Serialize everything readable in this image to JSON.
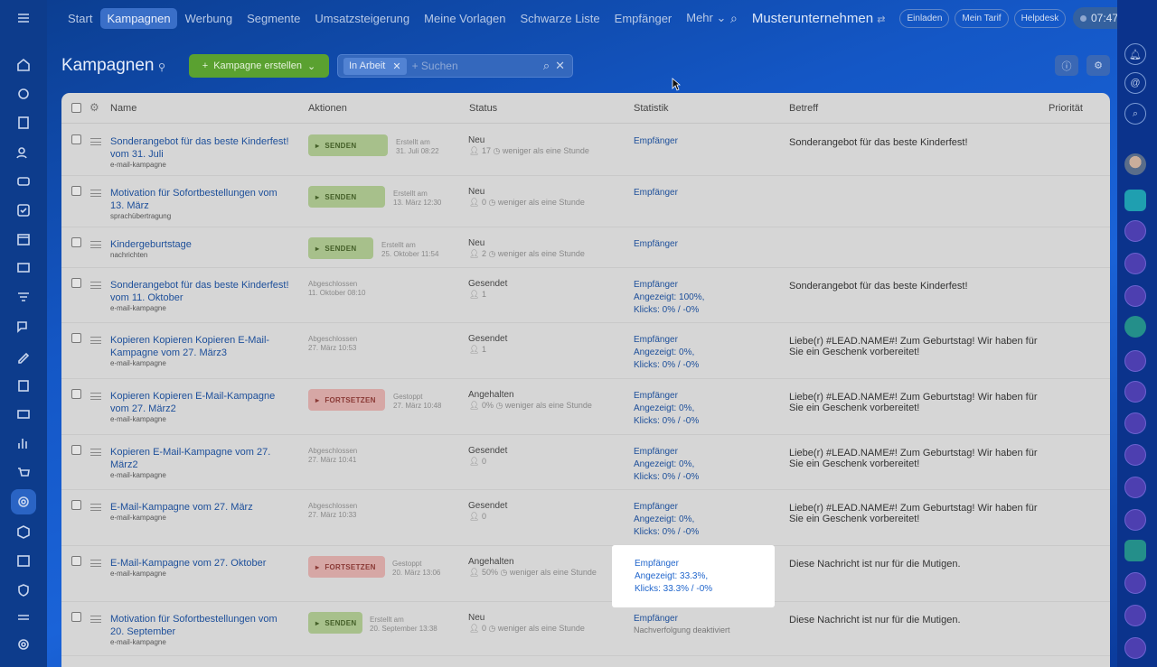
{
  "topnav": {
    "items": [
      "Start",
      "Kampagnen",
      "Werbung",
      "Segmente",
      "Umsatzsteigerung",
      "Meine Vorlagen",
      "Schwarze Liste",
      "Empfänger",
      "Mehr"
    ],
    "company": "Musterunternehmen",
    "invite": "Einladen",
    "tariff": "Mein Tarif",
    "helpdesk": "Helpdesk",
    "time": "07:47"
  },
  "header": {
    "title": "Kampagnen",
    "create_button": "Kampagne erstellen",
    "filter_chip": "In Arbeit",
    "search_placeholder": "+ Suchen"
  },
  "table": {
    "columns": {
      "name": "Name",
      "actions": "Aktionen",
      "status": "Status",
      "stats": "Statistik",
      "subject": "Betreff",
      "priority": "Priorität"
    },
    "rows": [
      {
        "name": "Sonderangebot für das beste Kinderfest! vom 31. Juli",
        "type": "e-mail-kampagne",
        "action": "SENDEN",
        "meta1": "Erstellt am",
        "meta2": "31. Juli 08:22",
        "status": "Neu",
        "sub": "17",
        "time": "weniger als eine Stunde",
        "stat1": "Empfänger",
        "stat2": "",
        "stat3": "",
        "subject": "Sonderangebot für das beste Kinderfest!"
      },
      {
        "name": "Motivation für Sofortbestellungen vom 13. März",
        "type": "sprachübertragung",
        "action": "SENDEN",
        "meta1": "Erstellt am",
        "meta2": "13. März 12:30",
        "status": "Neu",
        "sub": "0",
        "time": "weniger als eine Stunde",
        "stat1": "Empfänger",
        "stat2": "",
        "stat3": "",
        "subject": ""
      },
      {
        "name": "Kindergeburtstage",
        "type": "nachrichten",
        "action": "SENDEN",
        "meta1": "Erstellt am",
        "meta2": "25. Oktober 11:54",
        "status": "Neu",
        "sub": "2",
        "time": "weniger als eine Stunde",
        "stat1": "Empfänger",
        "stat2": "",
        "stat3": "",
        "subject": ""
      },
      {
        "name": "Sonderangebot für das beste Kinderfest! vom 11. Oktober",
        "type": "e-mail-kampagne",
        "action": "",
        "meta1": "Abgeschlossen",
        "meta2": "11. Oktober 08:10",
        "status": "Gesendet",
        "sub": "1",
        "time": "",
        "stat1": "Empfänger",
        "stat2": "Angezeigt: 100%,",
        "stat3": "Klicks: 0% / -0%",
        "subject": "Sonderangebot für das beste Kinderfest!"
      },
      {
        "name": "Kopieren Kopieren Kopieren E-Mail-Kampagne vom 27. März3",
        "type": "e-mail-kampagne",
        "action": "",
        "meta1": "Abgeschlossen",
        "meta2": "27. März 10:53",
        "status": "Gesendet",
        "sub": "1",
        "time": "",
        "stat1": "Empfänger",
        "stat2": "Angezeigt: 0%,",
        "stat3": "Klicks: 0% / -0%",
        "subject": "Liebe(r) #LEAD.NAME#! Zum Geburtstag! Wir haben für Sie ein Geschenk vorbereitet!"
      },
      {
        "name": "Kopieren Kopieren E-Mail-Kampagne vom 27. März2",
        "type": "e-mail-kampagne",
        "action": "FORTSETZEN",
        "meta1": "Gestoppt",
        "meta2": "27. März 10:48",
        "status": "Angehalten",
        "sub": "0%",
        "time": "weniger als eine Stunde",
        "stat1": "Empfänger",
        "stat2": "Angezeigt: 0%,",
        "stat3": "Klicks: 0% / -0%",
        "subject": "Liebe(r) #LEAD.NAME#! Zum Geburtstag! Wir haben für Sie ein Geschenk vorbereitet!"
      },
      {
        "name": "Kopieren E-Mail-Kampagne vom 27. März2",
        "type": "e-mail-kampagne",
        "action": "",
        "meta1": "Abgeschlossen",
        "meta2": "27. März 10:41",
        "status": "Gesendet",
        "sub": "0",
        "time": "",
        "stat1": "Empfänger",
        "stat2": "Angezeigt: 0%,",
        "stat3": "Klicks: 0% / -0%",
        "subject": "Liebe(r) #LEAD.NAME#! Zum Geburtstag! Wir haben für Sie ein Geschenk vorbereitet!"
      },
      {
        "name": "E-Mail-Kampagne vom 27. März",
        "type": "e-mail-kampagne",
        "action": "",
        "meta1": "Abgeschlossen",
        "meta2": "27. März 10:33",
        "status": "Gesendet",
        "sub": "0",
        "time": "",
        "stat1": "Empfänger",
        "stat2": "Angezeigt: 0%,",
        "stat3": "Klicks: 0% / -0%",
        "subject": "Liebe(r) #LEAD.NAME#! Zum Geburtstag! Wir haben für Sie ein Geschenk vorbereitet!"
      },
      {
        "name": "E-Mail-Kampagne vom 27. Oktober",
        "type": "e-mail-kampagne",
        "action": "FORTSETZEN",
        "meta1": "Gestoppt",
        "meta2": "20. März 13:06",
        "status": "Angehalten",
        "sub": "50%",
        "time": "weniger als eine Stunde",
        "stat1": "Empfänger",
        "stat2": "Angezeigt: 33.3%,",
        "stat3": "Klicks: 33.3% / -0%",
        "subject": "Diese Nachricht ist nur für die Mutigen."
      },
      {
        "name": "Motivation für Sofortbestellungen vom 20. September",
        "type": "e-mail-kampagne",
        "action": "SENDEN",
        "meta1": "Erstellt am",
        "meta2": "20. September 13:38",
        "status": "Neu",
        "sub": "0",
        "time": "weniger als eine Stunde",
        "stat1": "Empfänger",
        "stat2": "Nachverfolgung deaktiviert",
        "stat3": "",
        "subject": "Diese Nachricht ist nur für die Mutigen."
      }
    ]
  },
  "highlight": {
    "line1": "Empfänger",
    "line2": "Angezeigt: 33.3%,",
    "line3": "Klicks: 33.3% / -0%"
  }
}
